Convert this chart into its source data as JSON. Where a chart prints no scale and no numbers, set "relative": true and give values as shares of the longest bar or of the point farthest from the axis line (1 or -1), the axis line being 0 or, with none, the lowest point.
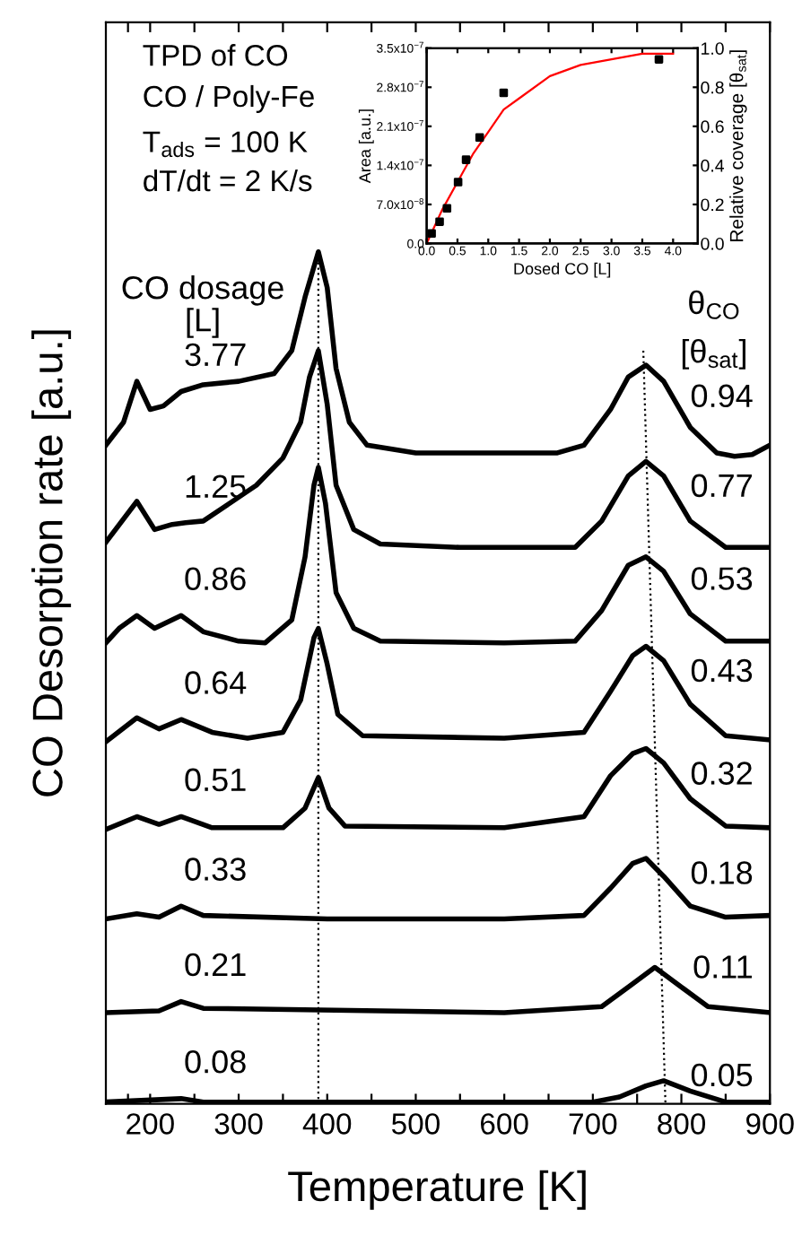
{
  "chart_data": [
    {
      "type": "line",
      "relative": true,
      "xlabel": "Temperature [K]",
      "ylabel": "CO Desorption rate [a.u.]",
      "xlim": [
        150,
        900
      ],
      "xticks": [
        200,
        300,
        400,
        500,
        600,
        700,
        800,
        900
      ],
      "tick_labels": "x",
      "grid": false,
      "legend": false,
      "series": [
        {
          "name": "3.77",
          "color": "#000000",
          "x": [
            150,
            170,
            185,
            200,
            215,
            235,
            260,
            300,
            340,
            360,
            375,
            390,
            400,
            410,
            425,
            445,
            500,
            600,
            660,
            690,
            720,
            740,
            760,
            780,
            810,
            840,
            860,
            880,
            900
          ],
          "values": [
            0.773,
            0.8,
            0.848,
            0.815,
            0.819,
            0.836,
            0.844,
            0.848,
            0.857,
            0.884,
            0.947,
            1.0,
            0.958,
            0.863,
            0.8,
            0.773,
            0.764,
            0.764,
            0.764,
            0.773,
            0.815,
            0.853,
            0.867,
            0.848,
            0.794,
            0.764,
            0.76,
            0.762,
            0.773
          ]
        },
        {
          "name": "1.25",
          "color": "#000000",
          "x": [
            150,
            185,
            205,
            225,
            240,
            260,
            290,
            320,
            350,
            370,
            380,
            390,
            400,
            410,
            430,
            460,
            550,
            680,
            710,
            740,
            760,
            780,
            810,
            850,
            900
          ],
          "values": [
            0.659,
            0.707,
            0.674,
            0.68,
            0.682,
            0.684,
            0.705,
            0.726,
            0.758,
            0.8,
            0.853,
            0.884,
            0.821,
            0.726,
            0.674,
            0.657,
            0.653,
            0.653,
            0.684,
            0.737,
            0.754,
            0.737,
            0.684,
            0.653,
            0.653
          ]
        },
        {
          "name": "0.86",
          "color": "#000000",
          "x": [
            150,
            165,
            185,
            205,
            235,
            260,
            300,
            330,
            360,
            375,
            385,
            390,
            398,
            410,
            430,
            460,
            600,
            680,
            710,
            740,
            760,
            780,
            810,
            850,
            900
          ],
          "values": [
            0.541,
            0.558,
            0.573,
            0.558,
            0.573,
            0.554,
            0.543,
            0.541,
            0.568,
            0.642,
            0.726,
            0.747,
            0.705,
            0.6,
            0.558,
            0.543,
            0.541,
            0.543,
            0.579,
            0.632,
            0.642,
            0.625,
            0.575,
            0.543,
            0.543
          ]
        },
        {
          "name": "0.64",
          "color": "#000000",
          "x": [
            150,
            185,
            210,
            235,
            270,
            310,
            350,
            370,
            385,
            390,
            400,
            412,
            440,
            600,
            690,
            720,
            745,
            760,
            780,
            810,
            850,
            900
          ],
          "values": [
            0.425,
            0.453,
            0.44,
            0.451,
            0.436,
            0.429,
            0.436,
            0.474,
            0.547,
            0.558,
            0.516,
            0.457,
            0.432,
            0.429,
            0.436,
            0.484,
            0.526,
            0.537,
            0.52,
            0.469,
            0.432,
            0.427
          ]
        },
        {
          "name": "0.51",
          "color": "#000000",
          "x": [
            150,
            185,
            210,
            235,
            270,
            350,
            375,
            390,
            402,
            420,
            600,
            690,
            720,
            745,
            760,
            780,
            810,
            850,
            900
          ],
          "values": [
            0.322,
            0.337,
            0.328,
            0.337,
            0.324,
            0.324,
            0.347,
            0.383,
            0.347,
            0.326,
            0.324,
            0.337,
            0.385,
            0.411,
            0.417,
            0.4,
            0.358,
            0.326,
            0.324
          ]
        },
        {
          "name": "0.33",
          "color": "#000000",
          "x": [
            150,
            185,
            210,
            235,
            260,
            400,
            600,
            690,
            720,
            745,
            760,
            780,
            810,
            850,
            900
          ],
          "values": [
            0.217,
            0.223,
            0.219,
            0.232,
            0.221,
            0.217,
            0.217,
            0.221,
            0.253,
            0.282,
            0.288,
            0.267,
            0.232,
            0.219,
            0.221
          ]
        },
        {
          "name": "0.21",
          "color": "#000000",
          "x": [
            150,
            210,
            235,
            260,
            600,
            710,
            740,
            770,
            800,
            830,
            900
          ],
          "values": [
            0.107,
            0.109,
            0.12,
            0.112,
            0.107,
            0.114,
            0.137,
            0.16,
            0.137,
            0.114,
            0.107
          ]
        },
        {
          "name": "0.08",
          "color": "#000000",
          "x": [
            150,
            235,
            260,
            700,
            730,
            760,
            780,
            810,
            850,
            900
          ],
          "values": [
            0.002,
            0.006,
            0.002,
            0.002,
            0.008,
            0.021,
            0.027,
            0.015,
            0.002,
            0.002
          ]
        },
        {
          "color": "#000000",
          "line_style": "dotted",
          "x": [
            390,
            390
          ],
          "values": [
            1.0,
            0
          ]
        },
        {
          "color": "#000000",
          "line_style": "dotted",
          "x": [
            757,
            782
          ],
          "values": [
            0.884,
            0
          ]
        }
      ],
      "annotations": [
        "TPD of CO",
        "CO / Poly-Fe",
        "T$_{ads}$ = 100 K",
        "dT/dt = 2 K/s",
        "CO dosage",
        "[L]",
        "θ$_{CO}$",
        "[θ$_{sat}$]",
        "0.94",
        "0.77",
        "0.53",
        "0.43",
        "0.32",
        "0.18",
        "0.11",
        "0.05"
      ]
    },
    {
      "type": "scatter",
      "xlabel": "Dosed CO [L]",
      "ylabel": "Area [a.u.]",
      "y2label": "Relative coverage [θ$_{sat}$]",
      "xlim": [
        0,
        4.4
      ],
      "ylim": [
        0,
        3.5e-07
      ],
      "y2lim": [
        0,
        1.0
      ],
      "grid": false,
      "legend": false,
      "xticks": [
        {
          "value": 0,
          "label": "0.0"
        },
        {
          "value": 0.5,
          "label": "0.5"
        },
        {
          "value": 1.0,
          "label": "1.0"
        },
        {
          "value": 1.5,
          "label": "1.5"
        },
        {
          "value": 2.0,
          "label": "2.0"
        },
        {
          "value": 2.5,
          "label": "2.5"
        },
        {
          "value": 3.0,
          "label": "3.0"
        },
        {
          "value": 3.5,
          "label": "3.5"
        },
        {
          "value": 4.0,
          "label": "4.0"
        }
      ],
      "yticks": [
        {
          "value": 0,
          "label": "0.0"
        },
        {
          "value": 7e-08,
          "label": "7.0x10$^{−8}$"
        },
        {
          "value": 1.4e-07,
          "label": "1.4x10$^{−7}$"
        },
        {
          "value": 2.1e-07,
          "label": "2.1x10$^{−7}$"
        },
        {
          "value": 2.8e-07,
          "label": "2.8x10$^{−7}$"
        },
        {
          "value": 3.5e-07,
          "label": "3.5x10$^{−7}$"
        }
      ],
      "y2ticks": [
        {
          "value": 0,
          "label": "0.0"
        },
        {
          "value": 0.2,
          "label": "0.2"
        },
        {
          "value": 0.4,
          "label": "0.4"
        },
        {
          "value": 0.6,
          "label": "0.6"
        },
        {
          "value": 0.8,
          "label": "0.8"
        },
        {
          "value": 1.0,
          "label": "1.0"
        }
      ],
      "series": [
        {
          "type": "scatter",
          "marker": "square",
          "color": "#000000",
          "x": [
            0.08,
            0.21,
            0.33,
            0.51,
            0.64,
            0.86,
            1.25,
            3.77
          ],
          "values": [
            1.8e-08,
            3.9e-08,
            6.3e-08,
            1.1e-07,
            1.5e-07,
            1.9e-07,
            2.7e-07,
            3.3e-07
          ]
        },
        {
          "type": "line",
          "color": "#ff0000",
          "x": [
            0,
            0.25,
            0.5,
            0.75,
            1.0,
            1.25,
            1.5,
            2.0,
            2.5,
            3.0,
            3.5,
            4.0
          ],
          "values": [
            0,
            6e-08,
            1.1e-07,
            1.6e-07,
            2e-07,
            2.4e-07,
            2.6e-07,
            3e-07,
            3.2e-07,
            3.3e-07,
            3.4e-07,
            3.4e-07
          ]
        }
      ]
    }
  ]
}
